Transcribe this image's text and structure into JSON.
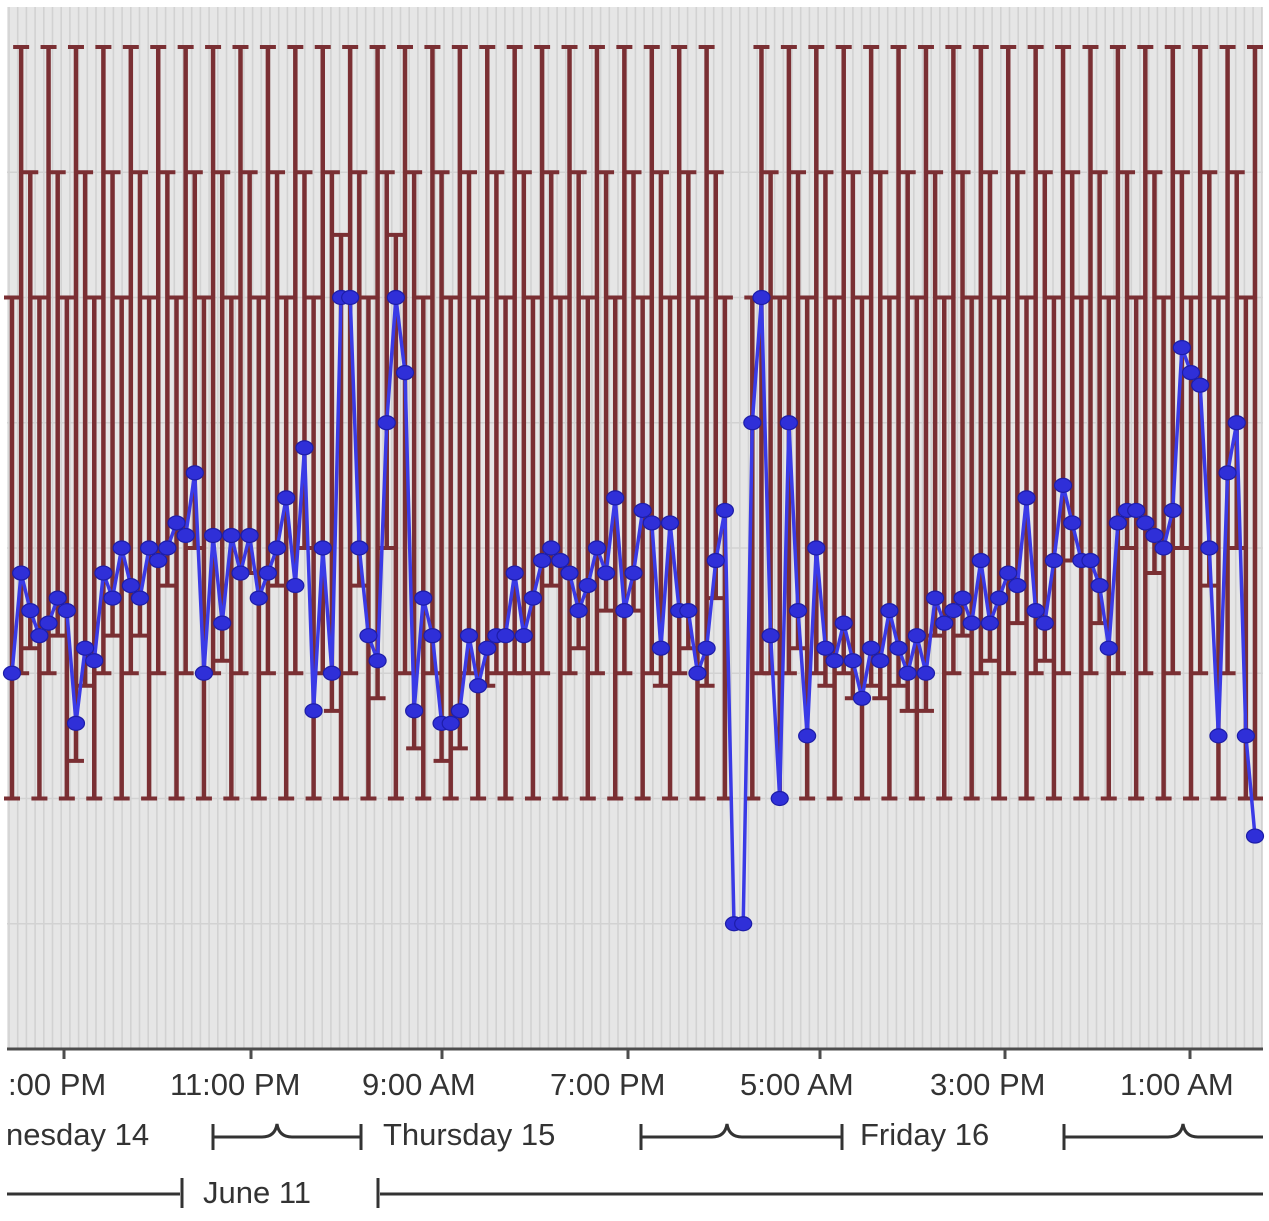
{
  "chart_data": {
    "type": "line",
    "title": "",
    "xlabel": "",
    "ylabel": "",
    "x_axis": {
      "tick_labels": [
        ":00 PM",
        "11:00 PM",
        "9:00 AM",
        "7:00 PM",
        "5:00 AM",
        "3:00 PM",
        "1:00 AM"
      ],
      "day_labels": [
        "nesday 14",
        "Thursday 15",
        "Friday 16"
      ],
      "period_label": "June 11"
    },
    "grid": true,
    "legend": "none",
    "colors": {
      "line": "#3a3ae6",
      "marker": "#2f2fd8",
      "error_bar": "#7a2f33",
      "plot_background": "#e6e6e6",
      "grid": "#d2d2d2",
      "axis": "#4d4d4d"
    },
    "series": [
      {
        "style": "line+markers",
        "values": [
          3.0,
          3.8,
          3.5,
          3.3,
          3.4,
          3.6,
          3.5,
          2.6,
          3.2,
          3.1,
          3.8,
          3.6,
          4.0,
          3.7,
          3.6,
          4.0,
          3.9,
          4.0,
          4.2,
          4.1,
          4.6,
          3.0,
          4.1,
          3.4,
          4.1,
          3.8,
          4.1,
          3.6,
          3.8,
          4.0,
          4.4,
          3.7,
          4.8,
          2.7,
          4.0,
          3.0,
          6.0,
          6.0,
          4.0,
          3.3,
          3.1,
          5.0,
          6.0,
          5.4,
          2.7,
          3.6,
          3.3,
          2.6,
          2.6,
          2.7,
          3.3,
          2.9,
          3.2,
          3.3,
          3.3,
          3.8,
          3.3,
          3.6,
          3.9,
          4.0,
          3.9,
          3.8,
          3.5,
          3.7,
          4.0,
          3.8,
          4.4,
          3.5,
          3.8,
          4.3,
          4.2,
          3.2,
          4.2,
          3.5,
          3.5,
          3.0,
          3.2,
          3.9,
          4.3,
          1.0,
          1.0,
          5.0,
          6.0,
          3.3,
          2.0,
          5.0,
          3.5,
          2.5,
          4.0,
          3.2,
          3.1,
          3.4,
          3.1,
          2.8,
          3.2,
          3.1,
          3.5,
          3.2,
          3.0,
          3.3,
          3.0,
          3.6,
          3.4,
          3.5,
          3.6,
          3.4,
          3.9,
          3.4,
          3.6,
          3.8,
          3.7,
          4.4,
          3.5,
          3.4,
          3.9,
          4.5,
          4.2,
          3.9,
          3.9,
          3.7,
          3.2,
          4.2,
          4.3,
          4.3,
          4.2,
          4.1,
          4.0,
          4.3,
          5.6,
          5.4,
          5.3,
          4.0,
          2.5,
          4.6,
          5.0,
          2.5,
          1.7
        ]
      }
    ],
    "error_bars": "lower and upper bounds shown as dark red vertical bars at each sample"
  }
}
